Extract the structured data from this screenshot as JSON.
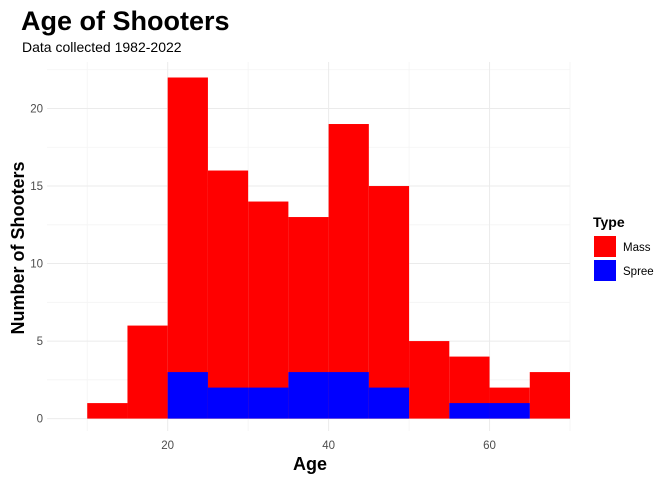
{
  "chart_data": {
    "type": "bar",
    "stacked": false,
    "title": "Age of Shooters",
    "subtitle": "Data collected 1982-2022",
    "xlabel": "Age",
    "ylabel": "Number of Shooters",
    "bin_width": 5,
    "xlim": [
      5,
      70
    ],
    "ylim": [
      0,
      23
    ],
    "x_ticks": [
      20,
      40,
      60
    ],
    "y_ticks": [
      0,
      5,
      10,
      15,
      20
    ],
    "grid": true,
    "legend": {
      "title": "Type",
      "position": "right"
    },
    "series": [
      {
        "name": "Mass",
        "color": "#ff0000",
        "bins": [
          {
            "x": 10,
            "value": 1
          },
          {
            "x": 15,
            "value": 6
          },
          {
            "x": 20,
            "value": 22
          },
          {
            "x": 25,
            "value": 16
          },
          {
            "x": 30,
            "value": 14
          },
          {
            "x": 35,
            "value": 13
          },
          {
            "x": 40,
            "value": 19
          },
          {
            "x": 45,
            "value": 15
          },
          {
            "x": 50,
            "value": 5
          },
          {
            "x": 55,
            "value": 4
          },
          {
            "x": 60,
            "value": 2
          },
          {
            "x": 65,
            "value": 3
          }
        ]
      },
      {
        "name": "Spree",
        "color": "#0000ff",
        "bins": [
          {
            "x": 20,
            "value": 3
          },
          {
            "x": 25,
            "value": 2
          },
          {
            "x": 30,
            "value": 2
          },
          {
            "x": 35,
            "value": 3
          },
          {
            "x": 40,
            "value": 3
          },
          {
            "x": 45,
            "value": 2
          },
          {
            "x": 55,
            "value": 1
          },
          {
            "x": 60,
            "value": 1
          }
        ]
      }
    ]
  }
}
